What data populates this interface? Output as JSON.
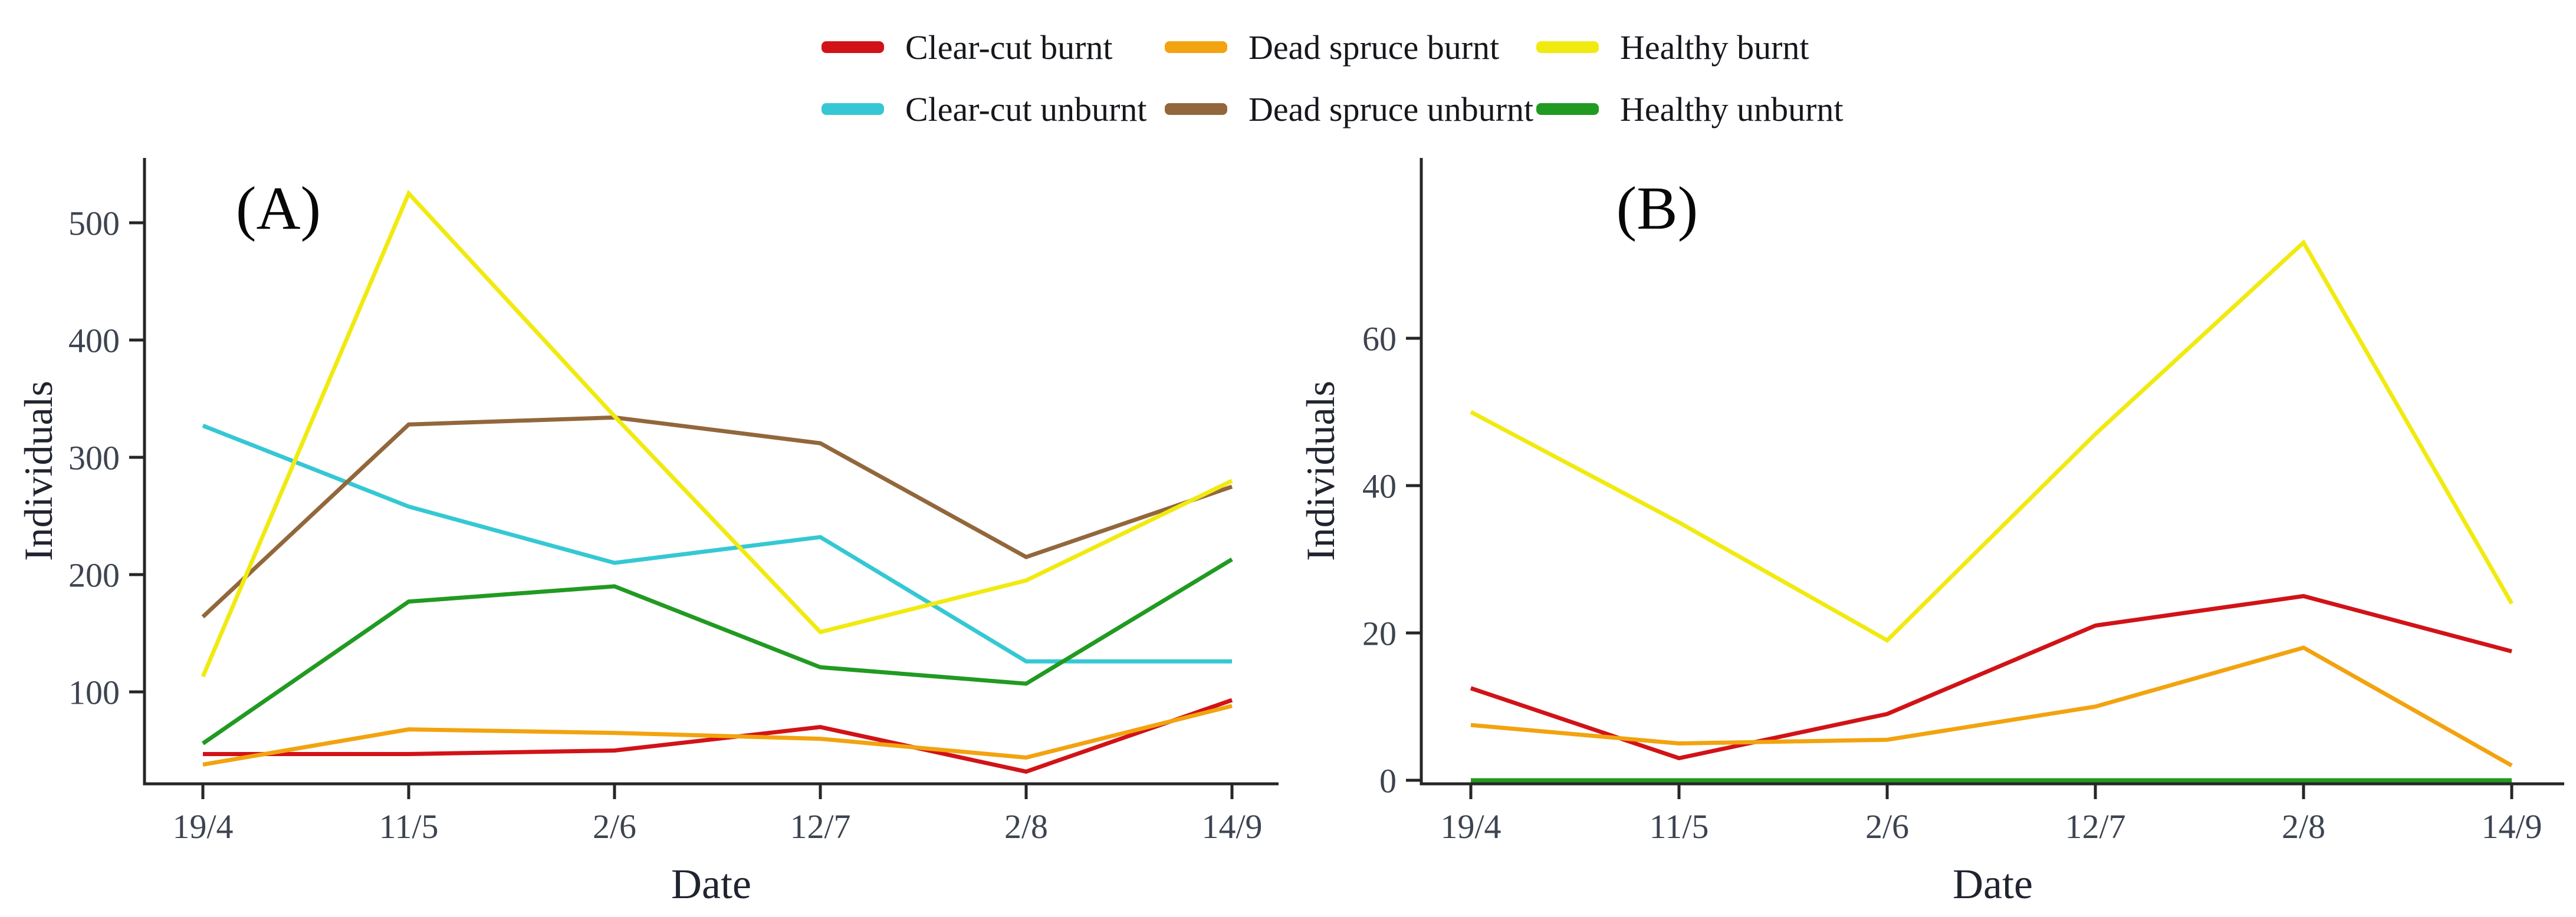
{
  "legend": {
    "position": "top-center",
    "items": [
      {
        "label": "Clear-cut burnt",
        "color": "#d11317"
      },
      {
        "label": "Dead spruce burnt",
        "color": "#f2a30f"
      },
      {
        "label": "Healthy burnt",
        "color": "#f1ea10"
      },
      {
        "label": "Clear-cut unburnt",
        "color": "#35c8d4"
      },
      {
        "label": "Dead spruce unburnt",
        "color": "#92673c"
      },
      {
        "label": "Healthy unburnt",
        "color": "#219a21"
      }
    ]
  },
  "chart_data": [
    {
      "type": "line",
      "panel_label": "(A)",
      "xlabel": "Date",
      "ylabel": "Individuals",
      "categories": [
        "19/4",
        "11/5",
        "2/6",
        "12/7",
        "2/8",
        "14/9"
      ],
      "yticks": [
        100,
        200,
        300,
        400,
        500
      ],
      "ylim": [
        20,
        555
      ],
      "grid": false,
      "series": [
        {
          "name": "Clear-cut burnt",
          "color": "#d11317",
          "values": [
            47,
            47,
            50,
            70,
            32,
            93
          ]
        },
        {
          "name": "Clear-cut unburnt",
          "color": "#35c8d4",
          "values": [
            327,
            258,
            210,
            232,
            126,
            126
          ]
        },
        {
          "name": "Dead spruce burnt",
          "color": "#f2a30f",
          "values": [
            38,
            68,
            65,
            60,
            44,
            88
          ]
        },
        {
          "name": "Dead spruce unburnt",
          "color": "#92673c",
          "values": [
            164,
            328,
            334,
            312,
            215,
            275
          ]
        },
        {
          "name": "Healthy burnt",
          "color": "#f1ea10",
          "values": [
            113,
            525,
            335,
            151,
            195,
            280
          ]
        },
        {
          "name": "Healthy unburnt",
          "color": "#219a21",
          "values": [
            56,
            177,
            190,
            121,
            107,
            213
          ]
        }
      ]
    },
    {
      "type": "line",
      "panel_label": "(B)",
      "xlabel": "Date",
      "ylabel": "Individuals",
      "categories": [
        "19/4",
        "11/5",
        "2/6",
        "12/7",
        "2/8",
        "14/9"
      ],
      "yticks": [
        0,
        20,
        40,
        60
      ],
      "ylim": [
        -1,
        83
      ],
      "grid": false,
      "series": [
        {
          "name": "Clear-cut burnt",
          "color": "#d11317",
          "values": [
            12.5,
            3,
            9,
            21,
            25,
            17.5
          ]
        },
        {
          "name": "Dead spruce burnt",
          "color": "#f2a30f",
          "values": [
            7.5,
            5,
            5.5,
            10,
            18,
            2
          ]
        },
        {
          "name": "Healthy burnt",
          "color": "#f1ea10",
          "values": [
            50,
            35,
            19,
            47,
            73,
            24
          ]
        },
        {
          "name": "Healthy unburnt",
          "color": "#219a21",
          "values": [
            0,
            0,
            0,
            0,
            0,
            0
          ]
        }
      ]
    }
  ]
}
